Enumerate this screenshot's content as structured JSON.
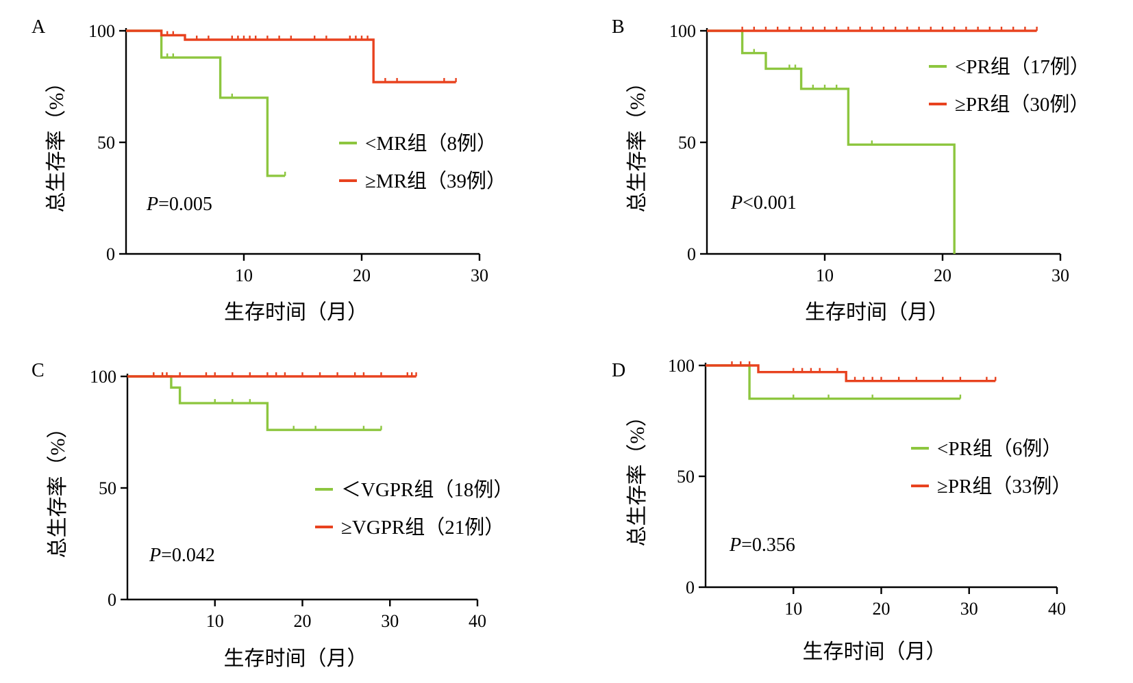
{
  "colors": {
    "low": "#8dc63f",
    "high": "#e8421f"
  },
  "chart_data": [
    {
      "type": "line",
      "panel": "A",
      "xlabel": "生存时间（月）",
      "ylabel": "总生存率（%）",
      "xlim": [
        0,
        30
      ],
      "ylim": [
        0,
        100
      ],
      "xticks": [
        "10",
        "20",
        "30"
      ],
      "yticks": [
        "0",
        "50",
        "100"
      ],
      "pvalue": "P=0.005",
      "series": [
        {
          "name": "<MR组（8例）",
          "color": "low",
          "steps": [
            [
              0,
              100
            ],
            [
              3,
              100
            ],
            [
              3,
              88
            ],
            [
              8,
              88
            ],
            [
              8,
              70
            ],
            [
              12,
              70
            ],
            [
              12,
              35
            ],
            [
              13.5,
              35
            ]
          ],
          "censored": [
            [
              3.5,
              88
            ],
            [
              4,
              88
            ],
            [
              9,
              70
            ],
            [
              13.5,
              35
            ]
          ]
        },
        {
          "name": "≥MR组（39例）",
          "color": "high",
          "steps": [
            [
              0,
              100
            ],
            [
              3,
              100
            ],
            [
              3,
              98
            ],
            [
              5,
              98
            ],
            [
              5,
              96
            ],
            [
              21,
              96
            ],
            [
              21,
              77
            ],
            [
              28,
              77
            ]
          ],
          "censored": [
            [
              3.5,
              98
            ],
            [
              4,
              98
            ],
            [
              6,
              96
            ],
            [
              7,
              96
            ],
            [
              9,
              96
            ],
            [
              9.5,
              96
            ],
            [
              10,
              96
            ],
            [
              10.5,
              96
            ],
            [
              11,
              96
            ],
            [
              12,
              96
            ],
            [
              13,
              96
            ],
            [
              14,
              96
            ],
            [
              16,
              96
            ],
            [
              17,
              96
            ],
            [
              19,
              96
            ],
            [
              19.5,
              96
            ],
            [
              20,
              96
            ],
            [
              20.5,
              96
            ],
            [
              22,
              77
            ],
            [
              23,
              77
            ],
            [
              27,
              77
            ],
            [
              28,
              77
            ]
          ]
        }
      ]
    },
    {
      "type": "line",
      "panel": "B",
      "xlabel": "生存时间（月）",
      "ylabel": "总生存率（%）",
      "xlim": [
        0,
        30
      ],
      "ylim": [
        0,
        100
      ],
      "xticks": [
        "10",
        "20",
        "30"
      ],
      "yticks": [
        "0",
        "50",
        "100"
      ],
      "pvalue": "P<0.001",
      "series": [
        {
          "name": "<PR组（17例）",
          "color": "low",
          "steps": [
            [
              0,
              100
            ],
            [
              3,
              100
            ],
            [
              3,
              90
            ],
            [
              5,
              90
            ],
            [
              5,
              83
            ],
            [
              8,
              83
            ],
            [
              8,
              74
            ],
            [
              12,
              74
            ],
            [
              12,
              49
            ],
            [
              21,
              49
            ],
            [
              21,
              0
            ]
          ],
          "censored": [
            [
              4,
              90
            ],
            [
              7,
              83
            ],
            [
              7.5,
              83
            ],
            [
              9,
              74
            ],
            [
              10,
              74
            ],
            [
              11,
              74
            ],
            [
              14,
              49
            ]
          ]
        },
        {
          "name": "≥PR组（30例）",
          "color": "high",
          "steps": [
            [
              0,
              100
            ],
            [
              28,
              100
            ]
          ],
          "censored": [
            [
              3,
              100
            ],
            [
              4,
              100
            ],
            [
              5,
              100
            ],
            [
              6,
              100
            ],
            [
              7,
              100
            ],
            [
              8,
              100
            ],
            [
              9,
              100
            ],
            [
              10,
              100
            ],
            [
              11,
              100
            ],
            [
              12,
              100
            ],
            [
              13,
              100
            ],
            [
              14,
              100
            ],
            [
              15,
              100
            ],
            [
              16,
              100
            ],
            [
              17,
              100
            ],
            [
              18,
              100
            ],
            [
              19,
              100
            ],
            [
              20,
              100
            ],
            [
              21,
              100
            ],
            [
              22,
              100
            ],
            [
              23,
              100
            ],
            [
              24,
              100
            ],
            [
              25,
              100
            ],
            [
              26,
              100
            ],
            [
              27,
              100
            ],
            [
              28,
              100
            ]
          ]
        }
      ]
    },
    {
      "type": "line",
      "panel": "C",
      "xlabel": "生存时间（月）",
      "ylabel": "总生存率（%）",
      "xlim": [
        0,
        40
      ],
      "ylim": [
        0,
        100
      ],
      "xticks": [
        "10",
        "20",
        "30",
        "40"
      ],
      "yticks": [
        "0",
        "50",
        "100"
      ],
      "pvalue": "P=0.042",
      "series": [
        {
          "name": "＜VGPR组（18例）",
          "color": "low",
          "steps": [
            [
              0,
              100
            ],
            [
              5,
              100
            ],
            [
              5,
              95
            ],
            [
              6,
              95
            ],
            [
              6,
              88
            ],
            [
              16,
              88
            ],
            [
              16,
              76
            ],
            [
              29,
              76
            ]
          ],
          "censored": [
            [
              3,
              100
            ],
            [
              10,
              88
            ],
            [
              12,
              88
            ],
            [
              14,
              88
            ],
            [
              19,
              76
            ],
            [
              21.5,
              76
            ],
            [
              27,
              76
            ],
            [
              29,
              76
            ]
          ]
        },
        {
          "name": "≥VGPR组（21例）",
          "color": "high",
          "steps": [
            [
              0,
              100
            ],
            [
              33,
              100
            ]
          ],
          "censored": [
            [
              3,
              100
            ],
            [
              4,
              100
            ],
            [
              4.5,
              100
            ],
            [
              6,
              100
            ],
            [
              9,
              100
            ],
            [
              10,
              100
            ],
            [
              12,
              100
            ],
            [
              14,
              100
            ],
            [
              16,
              100
            ],
            [
              17,
              100
            ],
            [
              18,
              100
            ],
            [
              20,
              100
            ],
            [
              22,
              100
            ],
            [
              24,
              100
            ],
            [
              26,
              100
            ],
            [
              27,
              100
            ],
            [
              29,
              100
            ],
            [
              32,
              100
            ],
            [
              32.5,
              100
            ],
            [
              33,
              100
            ]
          ]
        }
      ]
    },
    {
      "type": "line",
      "panel": "D",
      "xlabel": "生存时间（月）",
      "ylabel": "总生存率（%）",
      "xlim": [
        0,
        40
      ],
      "ylim": [
        0,
        100
      ],
      "xticks": [
        "10",
        "20",
        "30",
        "40"
      ],
      "yticks": [
        "0",
        "50",
        "100"
      ],
      "pvalue": "P=0.356",
      "series": [
        {
          "name": "<PR组（6例）",
          "color": "low",
          "steps": [
            [
              0,
              100
            ],
            [
              5,
              100
            ],
            [
              5,
              85
            ],
            [
              29,
              85
            ]
          ],
          "censored": [
            [
              10,
              85
            ],
            [
              14,
              85
            ],
            [
              19,
              85
            ],
            [
              29,
              85
            ]
          ]
        },
        {
          "name": "≥PR组（33例）",
          "color": "high",
          "steps": [
            [
              0,
              100
            ],
            [
              6,
              100
            ],
            [
              6,
              97
            ],
            [
              16,
              97
            ],
            [
              16,
              93
            ],
            [
              33,
              93
            ]
          ],
          "censored": [
            [
              3,
              100
            ],
            [
              4,
              100
            ],
            [
              5,
              100
            ],
            [
              10,
              97
            ],
            [
              11,
              97
            ],
            [
              12,
              97
            ],
            [
              13,
              97
            ],
            [
              15,
              97
            ],
            [
              17,
              93
            ],
            [
              18,
              93
            ],
            [
              19,
              93
            ],
            [
              20,
              93
            ],
            [
              22,
              93
            ],
            [
              24,
              93
            ],
            [
              27,
              93
            ],
            [
              29,
              93
            ],
            [
              32,
              93
            ],
            [
              33,
              93
            ]
          ]
        }
      ]
    }
  ]
}
